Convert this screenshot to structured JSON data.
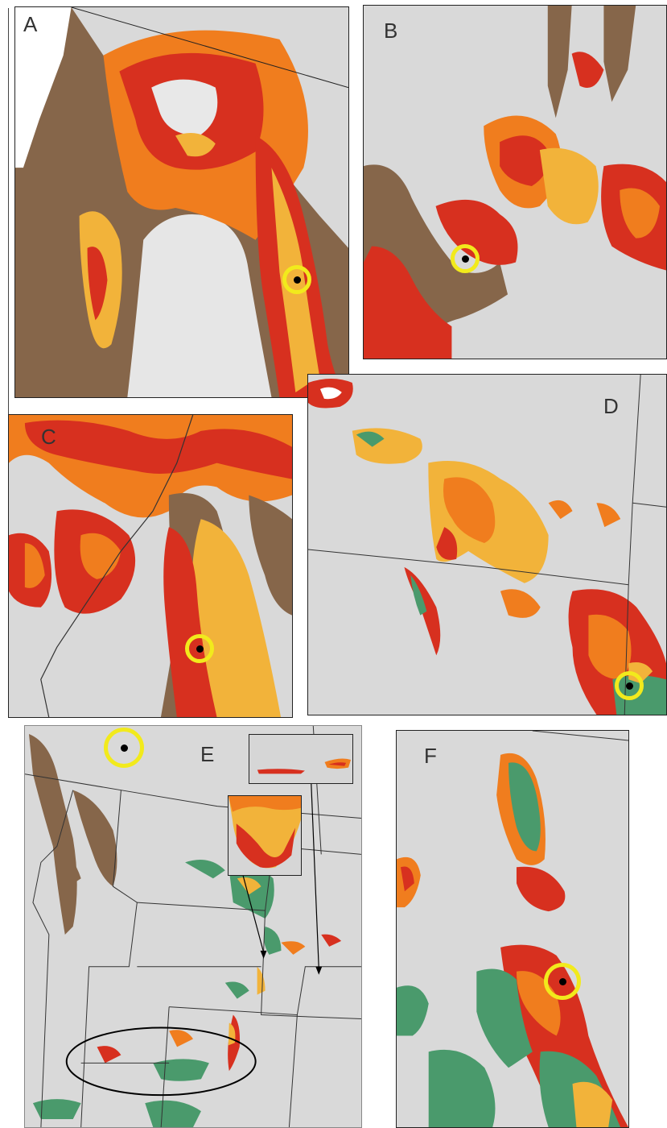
{
  "figure": {
    "panels": [
      {
        "id": "A",
        "label": "A"
      },
      {
        "id": "B",
        "label": "B"
      },
      {
        "id": "C",
        "label": "C"
      },
      {
        "id": "D",
        "label": "D"
      },
      {
        "id": "E",
        "label": "E"
      },
      {
        "id": "F",
        "label": "F"
      }
    ],
    "colors": {
      "hillshade": "#d8d8d8",
      "terrain_brown": "#86664a",
      "red": "#d7301f",
      "orange": "#f07d1e",
      "yellow_orange": "#f2b33a",
      "green": "#4a9a6c",
      "marker_ring": "#f2ea1c",
      "marker_dot": "#000000"
    },
    "icons": [
      "location-marker-icon",
      "pointer-arrow-icon",
      "region-ellipse"
    ]
  }
}
